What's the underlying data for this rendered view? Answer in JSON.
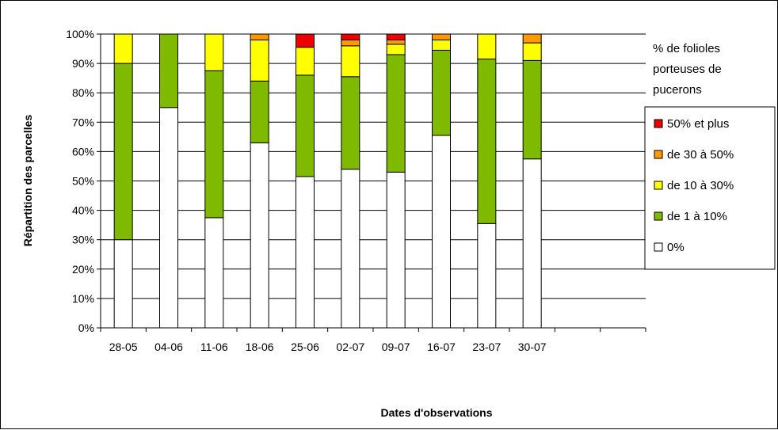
{
  "chart_data": {
    "type": "bar",
    "stacked": true,
    "percent": true,
    "categories": [
      "28-05",
      "04-06",
      "11-06",
      "18-06",
      "25-06",
      "02-07",
      "09-07",
      "16-07",
      "23-07",
      "30-07"
    ],
    "series": [
      {
        "name": "0%",
        "color": "#ffffff",
        "values": [
          30,
          75,
          37.5,
          63,
          51.5,
          54,
          53,
          65.5,
          35.5,
          57.5
        ]
      },
      {
        "name": "de 1 à 10%",
        "color": "#7fba00",
        "values": [
          60,
          25,
          50,
          21,
          34.5,
          31.5,
          40,
          29,
          56,
          33.5
        ]
      },
      {
        "name": "de 10 à 30%",
        "color": "#ffff00",
        "values": [
          10,
          0,
          12.5,
          14,
          9.5,
          10.5,
          3.5,
          3.5,
          8.5,
          6
        ]
      },
      {
        "name": "de 30 à 50%",
        "color": "#ff9900",
        "values": [
          0,
          0,
          0,
          2,
          0,
          2,
          1.5,
          2,
          0,
          3
        ]
      },
      {
        "name": "50% et plus",
        "color": "#ee0000",
        "values": [
          0,
          0,
          0,
          0,
          4.5,
          2,
          2,
          0,
          0,
          0
        ]
      }
    ],
    "ylim": [
      0,
      100
    ],
    "yticks": [
      "0%",
      "10%",
      "20%",
      "30%",
      "40%",
      "50%",
      "60%",
      "70%",
      "80%",
      "90%",
      "100%"
    ],
    "xlabel": "Dates d'observations",
    "ylabel": "Répartition des parcelles",
    "legend_title": [
      "% de folioles",
      "porteuses de",
      "pucerons"
    ],
    "legend_order": [
      "50% et plus",
      "de 30 à 50%",
      "de 10 à 30%",
      "de 1 à 10%",
      "0%"
    ],
    "legend_position": "right",
    "grid": true,
    "empty_trailing_slots": 2
  }
}
